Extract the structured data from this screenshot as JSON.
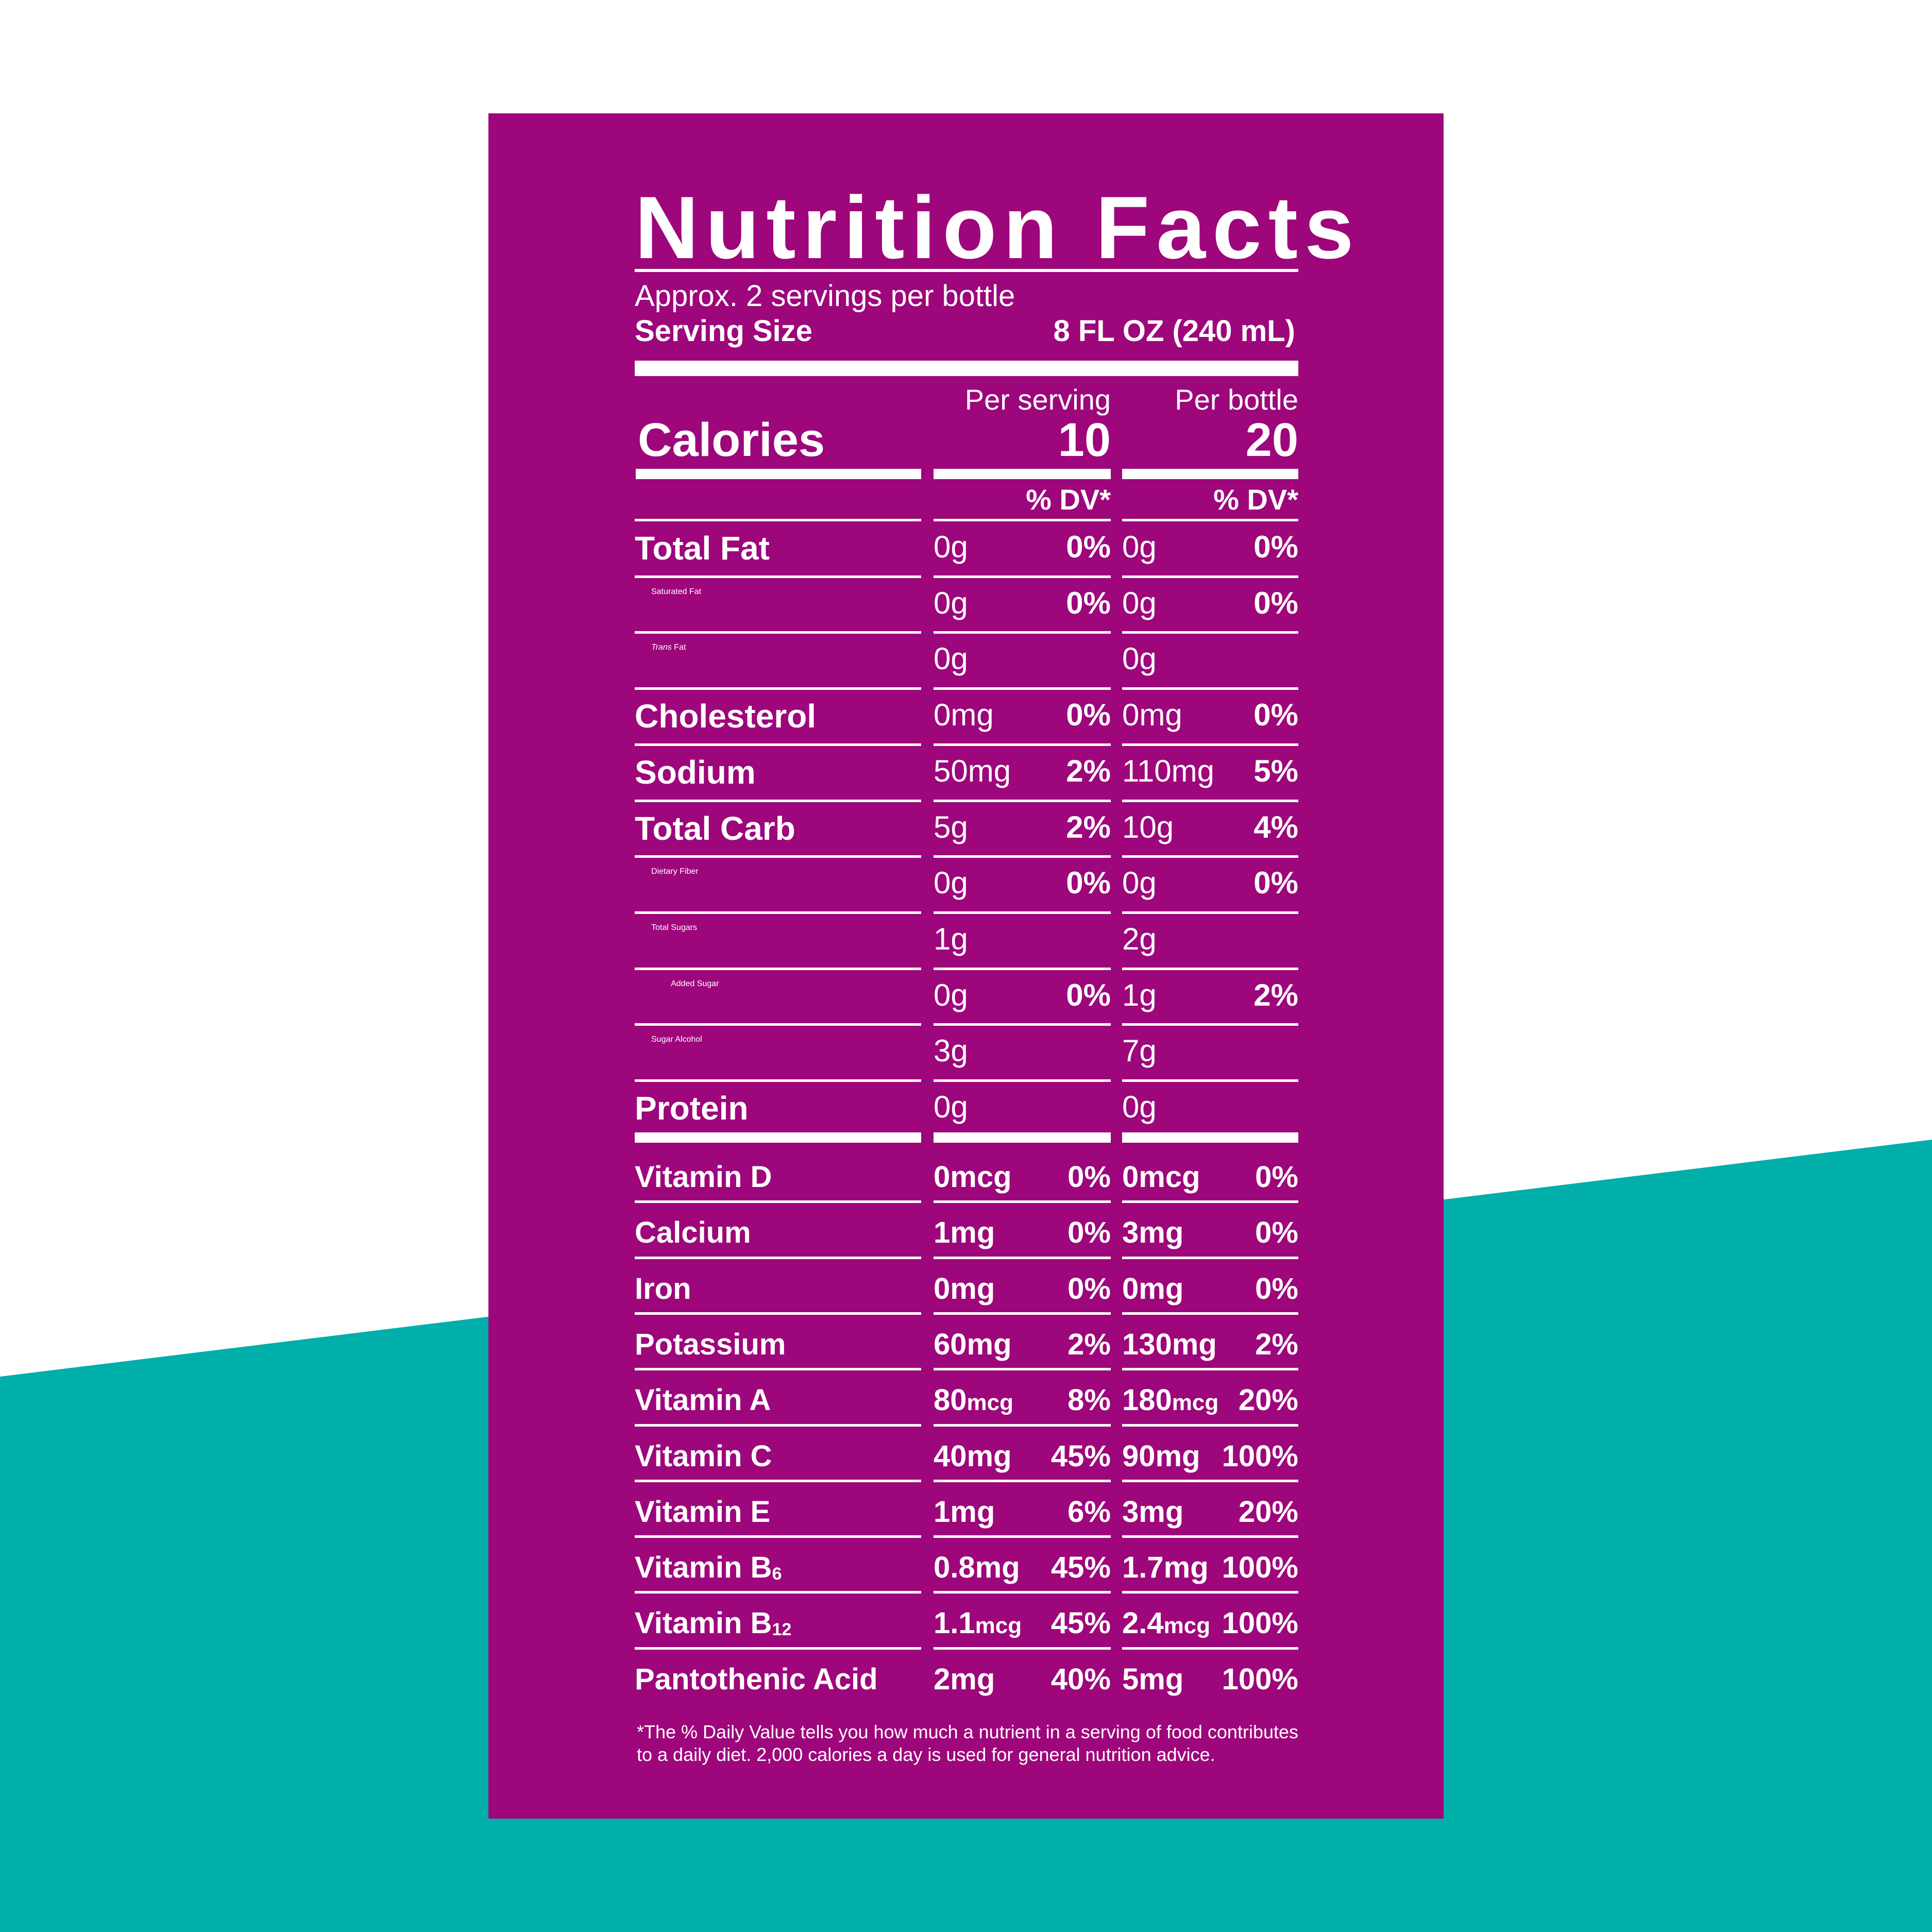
{
  "colors": {
    "panel": "#9e067b",
    "teal": "#00aeaa",
    "white": "#ffffff"
  },
  "title": "Nutrition Facts",
  "servings_per_container": "Approx. 2 servings per bottle",
  "serving_size": {
    "label": "Serving Size",
    "value": "8 FL OZ (240 mL)"
  },
  "columns": {
    "per_serving": "Per serving",
    "per_bottle": "Per bottle",
    "dv": "% DV*"
  },
  "calories": {
    "label": "Calories",
    "per_serving": "10",
    "per_bottle": "20"
  },
  "nutrients": [
    {
      "label": "Total Fat",
      "style": "bold",
      "s_amt": "0g",
      "s_dv": "0%",
      "b_amt": "0g",
      "b_dv": "0%"
    },
    {
      "label": "Saturated Fat",
      "style": "ind1",
      "s_amt": "0g",
      "s_dv": "0%",
      "b_amt": "0g",
      "b_dv": "0%"
    },
    {
      "label_italic": "Trans",
      "label": " Fat",
      "style": "ind1",
      "s_amt": "0g",
      "s_dv": "",
      "b_amt": "0g",
      "b_dv": ""
    },
    {
      "label": "Cholesterol",
      "style": "bold",
      "s_amt": "0mg",
      "s_dv": "0%",
      "b_amt": "0mg",
      "b_dv": "0%"
    },
    {
      "label": "Sodium",
      "style": "bold",
      "s_amt": "50mg",
      "s_dv": "2%",
      "b_amt": "110mg",
      "b_dv": "5%"
    },
    {
      "label": "Total Carb",
      "style": "bold",
      "s_amt": "5g",
      "s_dv": "2%",
      "b_amt": "10g",
      "b_dv": "4%"
    },
    {
      "label": "Dietary Fiber",
      "style": "ind1",
      "s_amt": "0g",
      "s_dv": "0%",
      "b_amt": "0g",
      "b_dv": "0%"
    },
    {
      "label": "Total Sugars",
      "style": "ind1",
      "s_amt": "1g",
      "s_dv": "",
      "b_amt": "2g",
      "b_dv": ""
    },
    {
      "label": "Added Sugar",
      "style": "ind2",
      "s_amt": "0g",
      "s_dv": "0%",
      "b_amt": "1g",
      "b_dv": "2%"
    },
    {
      "label": "Sugar Alcohol",
      "style": "ind1",
      "s_amt": "3g",
      "s_dv": "",
      "b_amt": "7g",
      "b_dv": ""
    },
    {
      "label": "Protein",
      "style": "bold",
      "s_amt": "0g",
      "s_dv": "",
      "b_amt": "0g",
      "b_dv": ""
    }
  ],
  "vitamins": [
    {
      "label": "Vitamin D",
      "s_amt": "0mcg",
      "s_dv": "0%",
      "b_amt": "0mcg",
      "b_dv": "0%"
    },
    {
      "label": "Calcium",
      "s_amt": "1mg",
      "s_dv": "0%",
      "b_amt": "3mg",
      "b_dv": "0%"
    },
    {
      "label": "Iron",
      "s_amt": "0mg",
      "s_dv": "0%",
      "b_amt": "0mg",
      "b_dv": "0%"
    },
    {
      "label": "Potassium",
      "s_amt": "60mg",
      "s_dv": "2%",
      "b_amt": "130mg",
      "b_dv": "2%"
    },
    {
      "label": "Vitamin A",
      "s_amt": "80",
      "s_unit": "mcg",
      "s_dv": "8%",
      "b_amt": "180",
      "b_unit": "mcg",
      "b_dv": "20%"
    },
    {
      "label": "Vitamin C",
      "s_amt": "40mg",
      "s_dv": "45%",
      "b_amt": "90mg",
      "b_dv": "100%"
    },
    {
      "label": "Vitamin E",
      "s_amt": "1mg",
      "s_dv": "6%",
      "b_amt": "3mg",
      "b_dv": "20%"
    },
    {
      "label": "Vitamin B",
      "label_sub": "6",
      "s_amt": "0.8mg",
      "s_dv": "45%",
      "b_amt": "1.7mg",
      "b_dv": "100%"
    },
    {
      "label": "Vitamin B",
      "label_sub": "12",
      "s_amt": "1.1",
      "s_unit": "mcg",
      "s_dv": "45%",
      "b_amt": "2.4",
      "b_unit": "mcg",
      "b_dv": "100%"
    },
    {
      "label": "Pantothenic Acid",
      "s_amt": "2mg",
      "s_dv": "40%",
      "b_amt": "5mg",
      "b_dv": "100%"
    }
  ],
  "footnote": "*The % Daily Value tells you how much a nutrient in a serving of food contributes to a daily diet. 2,000 calories a day is used for general nutrition advice."
}
